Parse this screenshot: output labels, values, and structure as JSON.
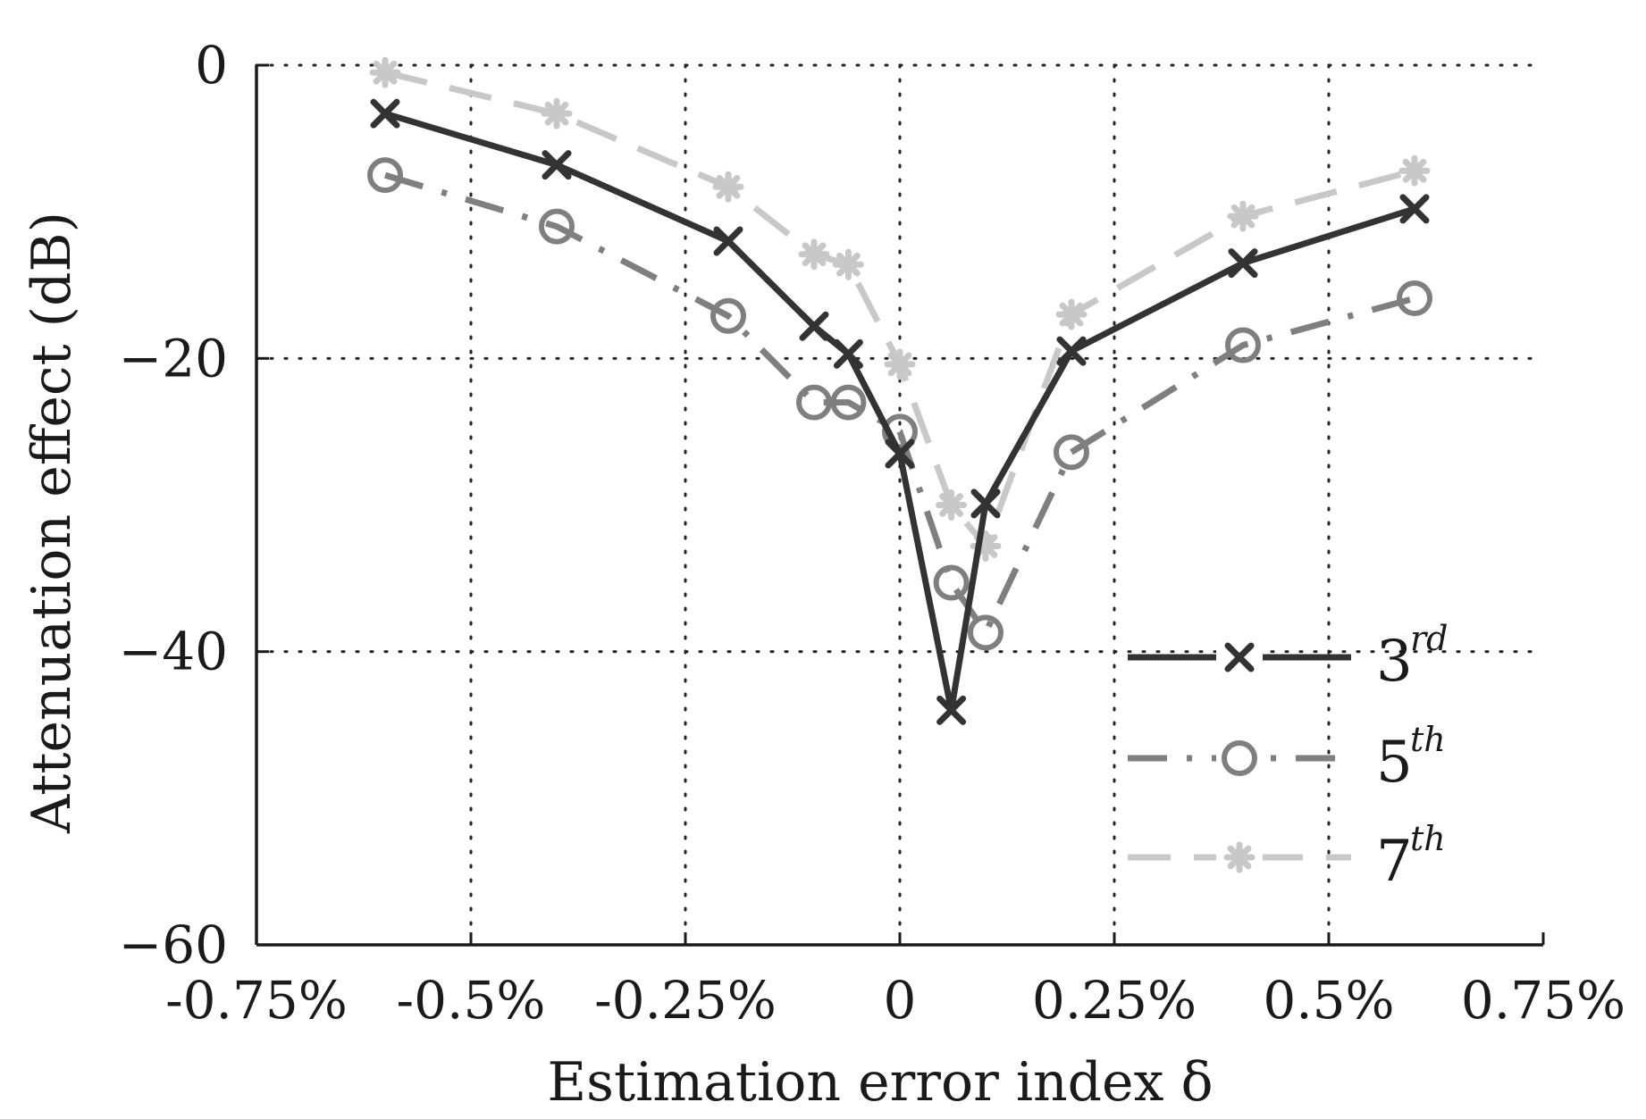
{
  "chart_data": {
    "type": "line",
    "xlabel": "Estimation error index δ",
    "ylabel": "Attenuation effect (dB)",
    "xlim": [
      -0.75,
      0.75
    ],
    "ylim": [
      -60,
      0
    ],
    "x_ticks": [
      {
        "value": -0.75,
        "label": "-0.75%"
      },
      {
        "value": -0.5,
        "label": "-0.5%"
      },
      {
        "value": -0.25,
        "label": "-0.25%"
      },
      {
        "value": 0,
        "label": "0"
      },
      {
        "value": 0.25,
        "label": "0.25%"
      },
      {
        "value": 0.5,
        "label": "0.5%"
      },
      {
        "value": 0.75,
        "label": "0.75%"
      }
    ],
    "y_ticks": [
      {
        "value": 0,
        "label": "0"
      },
      {
        "value": -20,
        "label": "−20"
      },
      {
        "value": -40,
        "label": "−40"
      },
      {
        "value": -60,
        "label": "−60"
      }
    ],
    "grid": true,
    "legend_position": "bottom-right",
    "x": [
      -0.6,
      -0.4,
      -0.2,
      -0.1,
      -0.06,
      0,
      0.06,
      0.1,
      0.2,
      0.4,
      0.6
    ],
    "series": [
      {
        "name": "3rd",
        "name_base": "3",
        "name_sup": "rd",
        "color": "#333333",
        "line_style": "solid",
        "marker": "x",
        "values": [
          -3.3,
          -6.8,
          -12,
          -17.8,
          -19.7,
          -26.5,
          -44,
          -29.9,
          -19.5,
          -13.5,
          -9.8
        ]
      },
      {
        "name": "5th",
        "name_base": "5",
        "name_sup": "th",
        "color": "#7f7f7f",
        "line_style": "dashdot",
        "marker": "o",
        "values": [
          -7.5,
          -11,
          -17.1,
          -23,
          -23,
          -25,
          -35.3,
          -38.7,
          -26.4,
          -19.1,
          -15.9
        ]
      },
      {
        "name": "7th",
        "name_base": "7",
        "name_sup": "th",
        "color": "#c8c8c8",
        "line_style": "dashed",
        "marker": "asterisk",
        "values": [
          -0.5,
          -3.3,
          -8.3,
          -12.9,
          -13.6,
          -20.4,
          -30,
          -32.8,
          -17,
          -10.3,
          -7.2
        ]
      }
    ]
  }
}
